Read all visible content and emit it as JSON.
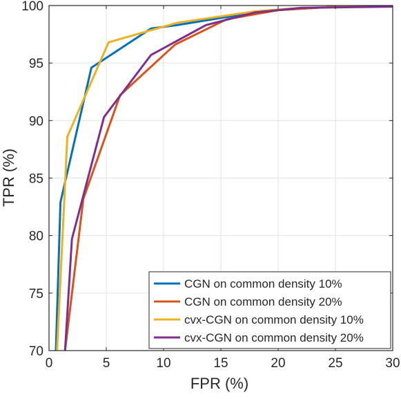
{
  "chart_data": {
    "type": "line",
    "title": "",
    "xlabel": "FPR (%)",
    "ylabel": "TPR (%)",
    "xlim": [
      0,
      30
    ],
    "ylim": [
      70,
      100
    ],
    "xticks": [
      0,
      5,
      10,
      15,
      20,
      25,
      30
    ],
    "yticks": [
      70,
      75,
      80,
      85,
      90,
      95,
      100
    ],
    "grid": true,
    "legend_position": "bottom-right",
    "series": [
      {
        "name": "CGN on common density 10%",
        "color": "#0072BD",
        "x": [
          0.6,
          1.0,
          3.7,
          8.9,
          11.2,
          15.5,
          20.0,
          25.0,
          30.0
        ],
        "y": [
          70.0,
          82.9,
          94.6,
          98.0,
          98.3,
          99.0,
          99.6,
          99.9,
          100.0
        ]
      },
      {
        "name": "CGN on common density 20%",
        "color": "#D95319",
        "x": [
          1.4,
          3.0,
          6.2,
          11.0,
          15.5,
          20.0,
          25.0,
          30.0
        ],
        "y": [
          70.0,
          83.2,
          92.2,
          96.6,
          98.8,
          99.6,
          99.9,
          100.0
        ]
      },
      {
        "name": "cvx-CGN on common density 10%",
        "color": "#EDB120",
        "x": [
          0.7,
          1.6,
          5.2,
          11.2,
          18.0,
          22.0,
          30.0
        ],
        "y": [
          70.0,
          88.6,
          96.8,
          98.5,
          99.5,
          99.8,
          100.0
        ]
      },
      {
        "name": "cvx-CGN on common density 20%",
        "color": "#7E2F8E",
        "x": [
          1.4,
          2.0,
          4.8,
          8.9,
          13.7,
          18.0,
          22.0,
          30.0
        ],
        "y": [
          70.0,
          79.7,
          90.3,
          95.7,
          98.3,
          99.4,
          99.8,
          99.9
        ]
      }
    ]
  }
}
